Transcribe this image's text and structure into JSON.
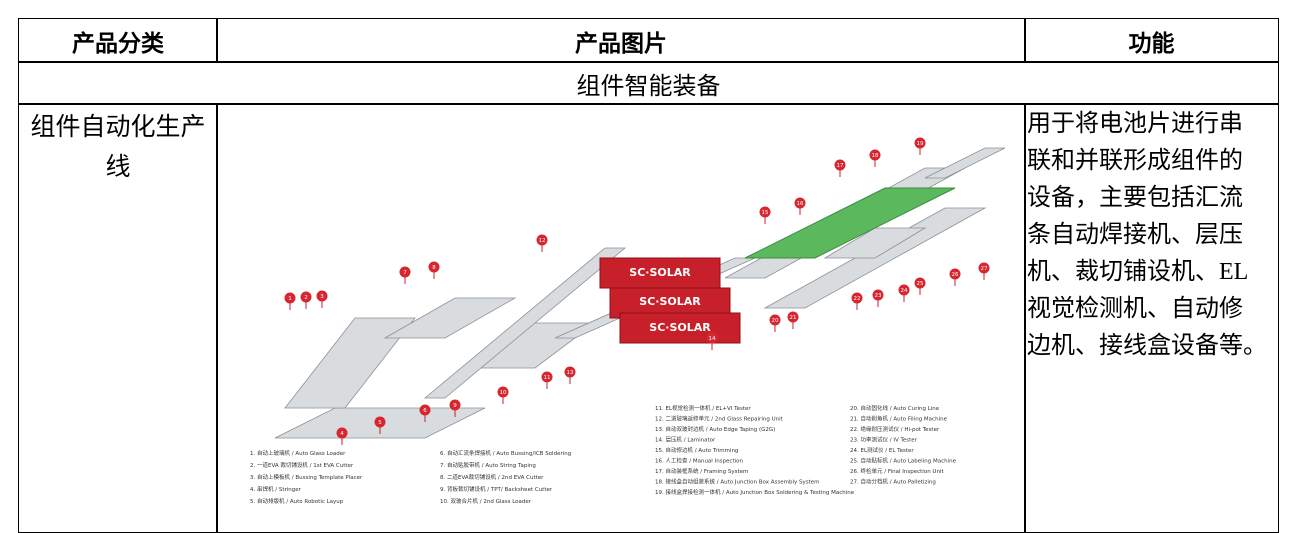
{
  "table": {
    "header": [
      "产品分类",
      "产品图片",
      "功能"
    ],
    "section": "组件智能装备",
    "rows": [
      {
        "category": "组件自动化生产线",
        "function": [
          "用于将电池片进行串",
          "联和并联形成组件的",
          "设备，主要包括汇流",
          "条自动焊接机、层压",
          "机、裁切铺设机、EL",
          "视觉检测机、自动修",
          "边机、接线盒设备等。"
        ],
        "image": {
          "logos": [
            "SC·SOLAR",
            "SC·SOLAR",
            "SC·SOLAR"
          ],
          "markers": [
            "1",
            "2",
            "3",
            "4",
            "5",
            "6",
            "7",
            "8",
            "9",
            "10",
            "11",
            "12",
            "13",
            "14",
            "15",
            "16",
            "17",
            "18",
            "19",
            "20",
            "21",
            "22",
            "23",
            "24",
            "25",
            "26",
            "27"
          ],
          "legend": [
            "1. 自动上玻璃机 / Auto Glass Loader",
            "2. 一道EVA 裁切铺设机 / 1st EVA Cutter",
            "3. 自动上模板机 / Bussing Template Placer",
            "4. 串焊机 / Stringer",
            "5. 自动排版机 / Auto Robotic Layup",
            "6. 自动汇流条焊接机 / Auto Bussing/ICB Soldering",
            "7. 自动贴胶带机 / Auto String Taping",
            "8. 二道EVA裁切铺设机 / 2nd EVA Cutter",
            "9. 背板裁切铺设机 / TPT/ Backsheet Cutter",
            "10. 双玻合片机 / 2nd Glass Loader",
            "11. EL视觉检测一体机 / EL+VI Tester",
            "12. 二道玻璃返修单元 / 2nd Glass Repairing Unit",
            "13. 自动双玻封边机 / Auto Edge Taping (G2G)",
            "14. 层压机 / Laminator",
            "15. 自动修边机 / Auto Trimming",
            "16. 人工检查 / Manual Inspection",
            "17. 自动装框系统 / Framing System",
            "18. 接线盒自动组装系统 / Auto Junction Box Assembly System",
            "19. 接线盒焊接检测一体机 / Auto Junction Box Soldering & Testing Machine",
            "20. 自动固化线 / Auto Curing Line",
            "21. 自动削角机 / Auto Filing Machine",
            "22. 绝缘耐压测试仪 / Hi-pot Tester",
            "23. 功率测试仪 / IV Tester",
            "24. EL测试仪 / EL Tester",
            "25. 自动贴标机 / Auto Labeling Machine",
            "26. 终检单元 / Final Inspection Unit",
            "27. 自动分档机 / Auto Palletizing"
          ]
        }
      }
    ]
  }
}
